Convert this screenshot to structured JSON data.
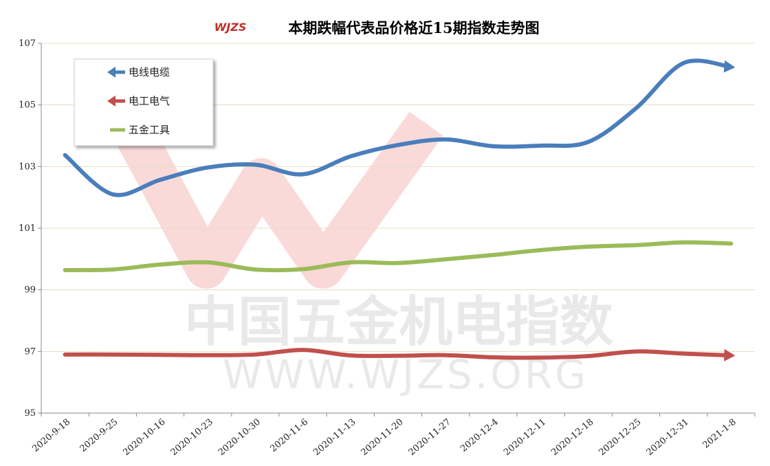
{
  "chart_data": {
    "type": "line",
    "title": "本期跌幅代表品价格近15期指数走势图",
    "logo": "WJZS",
    "watermark": [
      "中国五金机电指数",
      "WWW.WJZS.ORG"
    ],
    "categories": [
      "2020-9-18",
      "2020-9-25",
      "2020-10-16",
      "2020-10-23",
      "2020-10-30",
      "2020-11-6",
      "2020-11-13",
      "2020-11-20",
      "2020-11-27",
      "2020-12-4",
      "2020-12-11",
      "2020-12-18",
      "2020-12-25",
      "2020-12-31",
      "2021-1-8"
    ],
    "series": [
      {
        "name": "电线电缆",
        "color": "#4a7ebb",
        "values": [
          103.37,
          102.1,
          102.57,
          102.97,
          103.06,
          102.75,
          103.33,
          103.7,
          103.88,
          103.66,
          103.68,
          103.8,
          104.89,
          106.36,
          106.23
        ]
      },
      {
        "name": "电工电气",
        "color": "#c0504d",
        "values": [
          96.9,
          96.9,
          96.89,
          96.88,
          96.9,
          97.05,
          96.87,
          96.86,
          96.88,
          96.81,
          96.8,
          96.85,
          97.0,
          96.93,
          96.87
        ]
      },
      {
        "name": "五金工具",
        "color": "#9bbb59",
        "values": [
          99.64,
          99.66,
          99.82,
          99.89,
          99.66,
          99.67,
          99.89,
          99.87,
          99.99,
          100.13,
          100.29,
          100.4,
          100.45,
          100.54,
          100.5
        ]
      }
    ],
    "ylim": [
      95,
      107
    ],
    "yticks": [
      95,
      97,
      99,
      101,
      103,
      105,
      107
    ],
    "grid": true,
    "legend": "upper left"
  }
}
